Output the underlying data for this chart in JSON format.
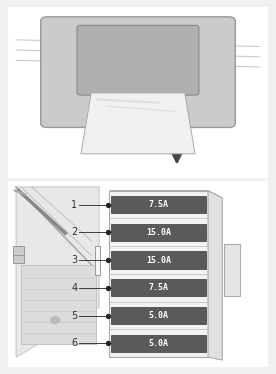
{
  "bg_color": "#f0f0f0",
  "panel_bg": "#ffffff",
  "panel_border": "#cccccc",
  "fuses": [
    {
      "num": "1",
      "label": "7.5A"
    },
    {
      "num": "2",
      "label": "15.0A"
    },
    {
      "num": "3",
      "label": "15.0A"
    },
    {
      "num": "4",
      "label": "7.5A"
    },
    {
      "num": "5",
      "label": "5.0A"
    },
    {
      "num": "6",
      "label": "5.0A"
    }
  ],
  "fuse_color": "#5a5a5a",
  "fuse_text_color": "#ffffff",
  "fuse_border_color": "#3a3a3a",
  "box_face_color": "#f2f2f2",
  "box_edge_color": "#aaaaaa",
  "box_top_color": "#e8e8e8",
  "box_right_color": "#e0e0e0",
  "connector_color": "#e5e5e5",
  "line_color": "#333333",
  "dot_color": "#222222",
  "arrow_color": "#444444",
  "num_fontsize": 7,
  "fuse_fontsize": 6,
  "gray_line": "#bbbbbb",
  "sketch_line": "#aaaaaa",
  "sketch_fill": "#d8d8d8",
  "sketch_fill2": "#e5e5e5"
}
